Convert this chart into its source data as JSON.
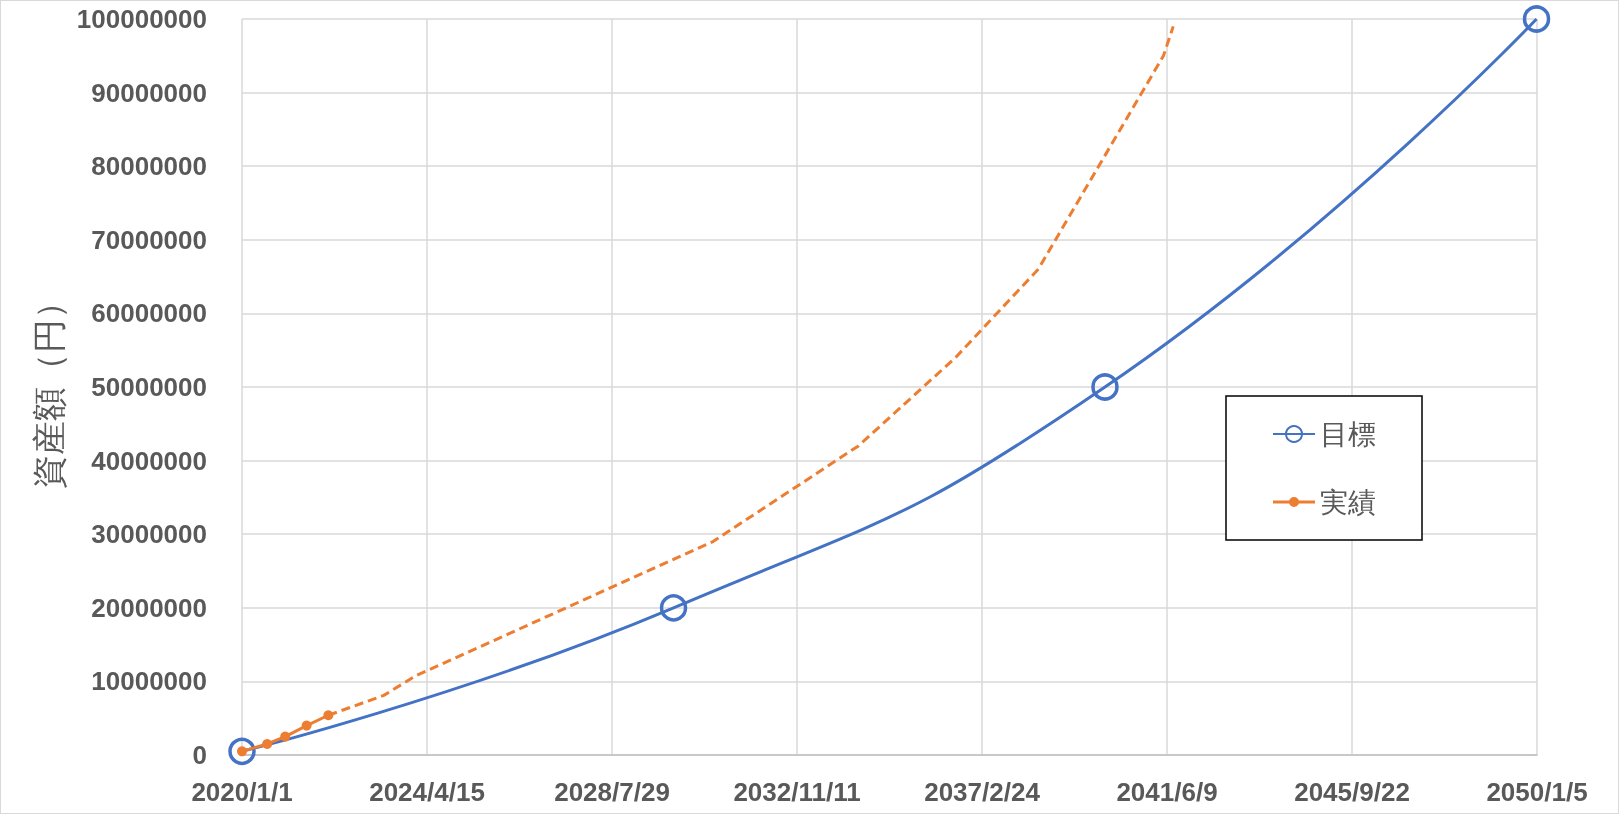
{
  "chart_data": {
    "type": "line",
    "ylabel": "資産額（円）",
    "xlim": [
      "2020-01-01",
      "2050-01-05"
    ],
    "xticks": [
      {
        "value": "2020-01-01",
        "label": "2020/1/1"
      },
      {
        "value": "2024-04-15",
        "label": "2024/4/15"
      },
      {
        "value": "2028-07-29",
        "label": "2028/7/29"
      },
      {
        "value": "2032-11-11",
        "label": "2032/11/11"
      },
      {
        "value": "2037-02-24",
        "label": "2037/2/24"
      },
      {
        "value": "2041-06-09",
        "label": "2041/6/9"
      },
      {
        "value": "2045-09-22",
        "label": "2045/9/22"
      },
      {
        "value": "2050-01-05",
        "label": "2050/1/5"
      }
    ],
    "ylim": [
      0,
      100000000
    ],
    "yticks": [
      0,
      10000000,
      20000000,
      30000000,
      40000000,
      50000000,
      60000000,
      70000000,
      80000000,
      90000000,
      100000000
    ],
    "grid": true,
    "legend": "right",
    "marker": "circle",
    "line_style": "solid",
    "series": [
      {
        "name": "目標",
        "color": "#4472c4",
        "x": [
          "2020-01-01",
          "2030-01-01",
          "2040-01-01",
          "2050-01-01"
        ],
        "values": [
          500000,
          20000000,
          50000000,
          100000000
        ]
      },
      {
        "name": "実績",
        "color": "#ed7d31",
        "x": [
          "2020-01-01",
          "2020-08-01",
          "2021-01-01",
          "2021-07-01",
          "2022-01-01"
        ],
        "values": [
          500000,
          1500000,
          2500000,
          4000000,
          5400000
        ]
      },
      {
        "color": "#ed7d31",
        "line_style": "dashed",
        "marker": "none",
        "x": [
          "2022-01-01",
          "2023-04-15",
          "2024-01-15",
          "2030-12-01",
          "2034-04-15",
          "2036-07-15",
          "2038-06-15",
          "2041-05-10",
          "2041-08-01"
        ],
        "values": [
          5400000,
          8100000,
          10800000,
          29000000,
          42000000,
          54000000,
          66000000,
          95000000,
          99000000
        ]
      }
    ]
  }
}
